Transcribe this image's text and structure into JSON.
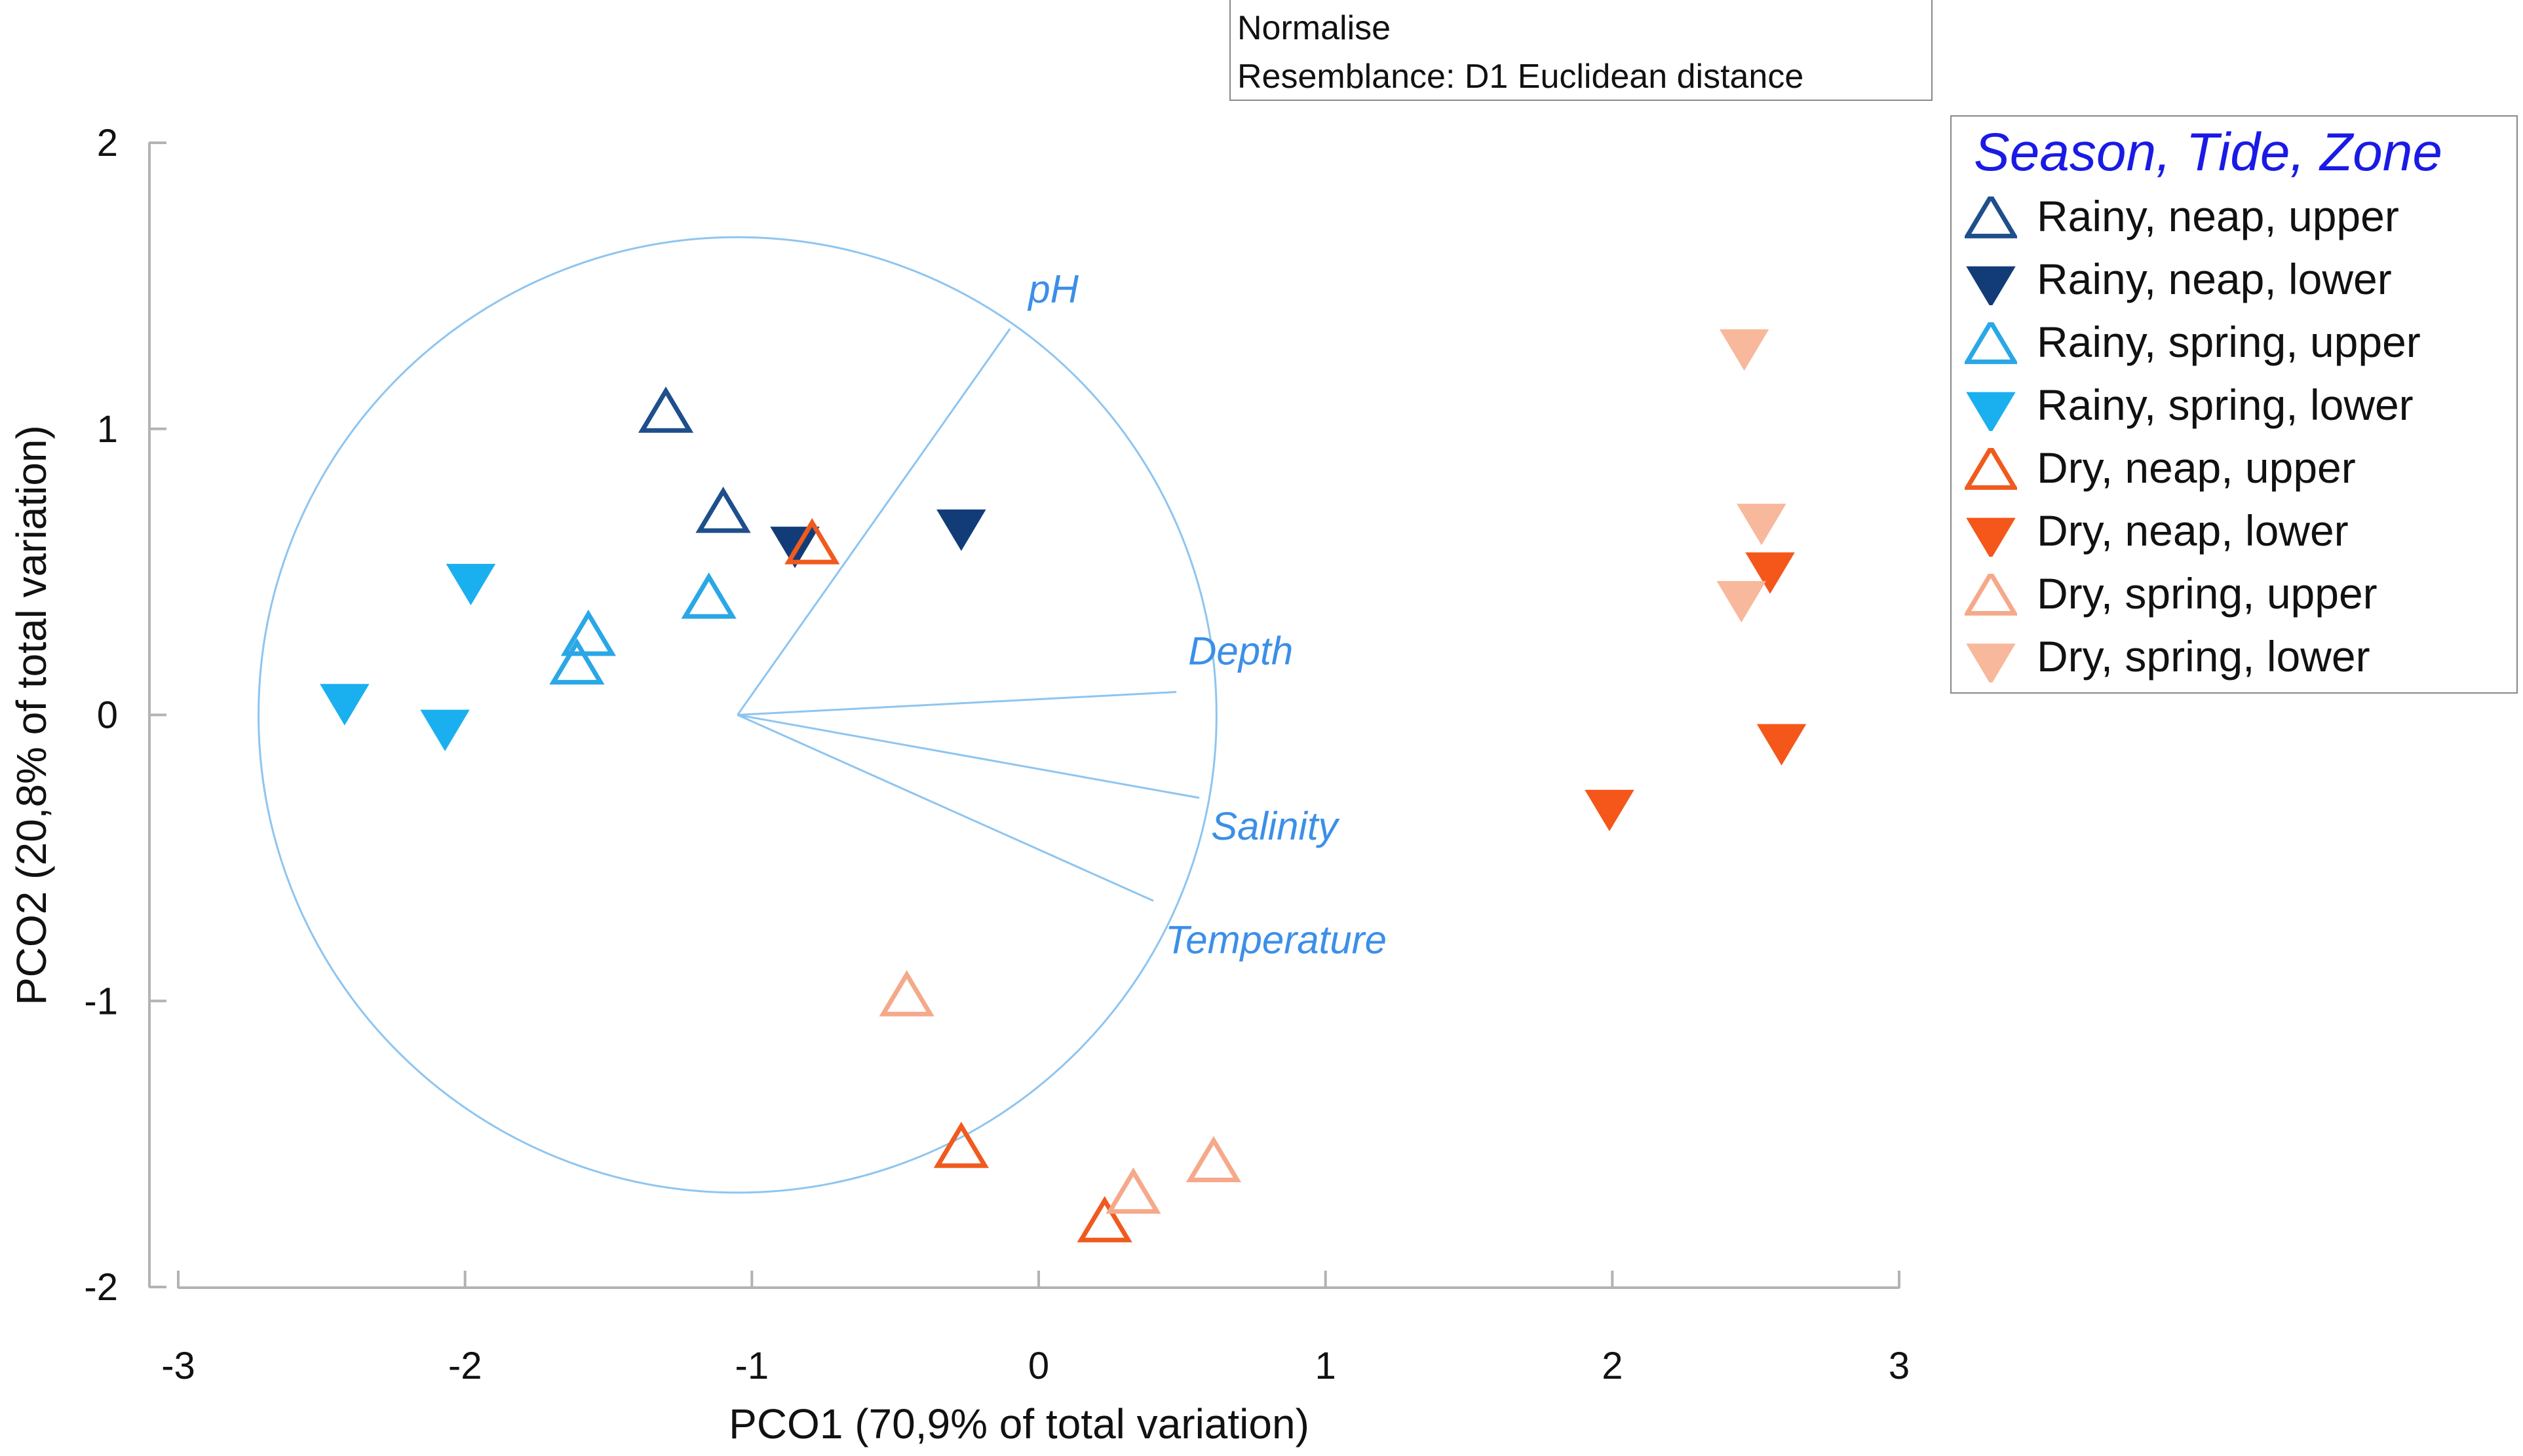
{
  "chart_data": {
    "type": "scatter",
    "annotation_lines": [
      "Normalise",
      "Resemblance: D1 Euclidean distance"
    ],
    "xlabel": "PCO1 (70,9% of total variation)",
    "ylabel": "PCO2 (20,8% of total variation)",
    "xlim": [
      -3,
      3
    ],
    "ylim": [
      -2,
      2
    ],
    "xticks": [
      "-3",
      "-2",
      "-1",
      "0",
      "1",
      "2",
      "3"
    ],
    "yticks": [
      "-2",
      "-1",
      "0",
      "1",
      "2"
    ],
    "legend_title": "Season, Tide, Zone",
    "legend_position": "right",
    "series": [
      {
        "name": "Rainy, neap, upper",
        "marker": "triangle-up-open",
        "color": "#1f4e8c",
        "points": [
          [
            -1.3,
            1.05
          ],
          [
            -1.1,
            0.7
          ]
        ]
      },
      {
        "name": "Rainy, neap, lower",
        "marker": "triangle-down-filled",
        "color": "#123c78",
        "points": [
          [
            -0.85,
            0.6
          ],
          [
            -0.27,
            0.66
          ]
        ]
      },
      {
        "name": "Rainy, spring, upper",
        "marker": "triangle-up-open",
        "color": "#2aa7e6",
        "points": [
          [
            -1.57,
            0.27
          ],
          [
            -1.61,
            0.17
          ],
          [
            -1.15,
            0.4
          ]
        ]
      },
      {
        "name": "Rainy, spring, lower",
        "marker": "triangle-down-filled",
        "color": "#1ab0f0",
        "points": [
          [
            -2.42,
            0.05
          ],
          [
            -2.07,
            -0.04
          ],
          [
            -1.98,
            0.47
          ]
        ]
      },
      {
        "name": "Dry, neap, upper",
        "marker": "triangle-up-open",
        "color": "#f05a1e",
        "points": [
          [
            -0.79,
            0.59
          ],
          [
            -0.27,
            -1.52
          ],
          [
            0.23,
            -1.78
          ]
        ]
      },
      {
        "name": "Dry, neap, lower",
        "marker": "triangle-down-filled",
        "color": "#f5561a",
        "points": [
          [
            1.99,
            -0.32
          ],
          [
            2.55,
            0.51
          ],
          [
            2.59,
            -0.09
          ]
        ]
      },
      {
        "name": "Dry, spring, upper",
        "marker": "triangle-up-open",
        "color": "#f5a98a",
        "points": [
          [
            -0.46,
            -0.99
          ],
          [
            0.33,
            -1.68
          ],
          [
            0.61,
            -1.57
          ]
        ]
      },
      {
        "name": "Dry, spring, lower",
        "marker": "triangle-down-filled",
        "color": "#f8b89c",
        "points": [
          [
            2.46,
            1.29
          ],
          [
            2.52,
            0.68
          ],
          [
            2.45,
            0.41
          ]
        ]
      }
    ],
    "vectors": {
      "origin": [
        -1.05,
        0.0
      ],
      "circle_radius": 1.67,
      "color": "#3b8fe8",
      "items": [
        {
          "label": "pH",
          "end": [
            -0.1,
            1.35
          ]
        },
        {
          "label": "Depth",
          "end": [
            0.48,
            0.08
          ]
        },
        {
          "label": "Salinity",
          "end": [
            0.56,
            -0.29
          ]
        },
        {
          "label": "Temperature",
          "end": [
            0.4,
            -0.65
          ]
        }
      ]
    }
  }
}
